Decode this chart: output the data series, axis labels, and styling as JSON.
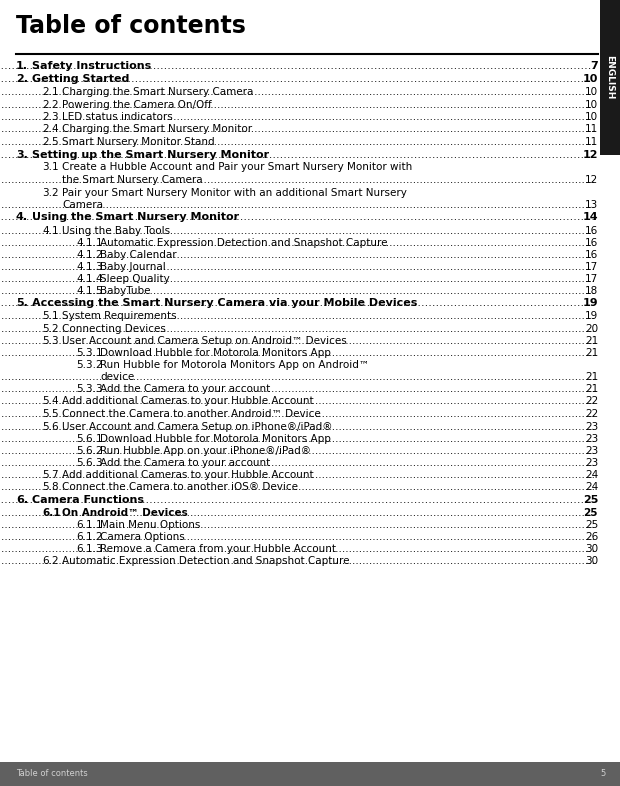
{
  "title": "Table of contents",
  "bg_color": "#ffffff",
  "footer_bg": "#606060",
  "footer_text": "Table of contents",
  "footer_page": "5",
  "sidebar_text": "ENGLISH",
  "sidebar_bg": "#1a1a1a",
  "entries": [
    {
      "level": 1,
      "num": "1.",
      "text": "Safety Instructions",
      "page": "7",
      "bold": true,
      "cont": null
    },
    {
      "level": 1,
      "num": "2.",
      "text": "Getting Started",
      "page": "10",
      "bold": true,
      "cont": null
    },
    {
      "level": 2,
      "num": "2.1",
      "text": "Charging the Smart Nursery Camera",
      "page": "10",
      "bold": false,
      "cont": null
    },
    {
      "level": 2,
      "num": "2.2",
      "text": "Powering the Camera On/Off",
      "page": "10",
      "bold": false,
      "cont": null
    },
    {
      "level": 2,
      "num": "2.3",
      "text": "LED status indicators",
      "page": "10",
      "bold": false,
      "cont": null
    },
    {
      "level": 2,
      "num": "2.4",
      "text": "Charging the Smart Nursery Monitor",
      "page": "11",
      "bold": false,
      "cont": null
    },
    {
      "level": 2,
      "num": "2.5",
      "text": "Smart Nursery Monitor Stand",
      "page": "11",
      "bold": false,
      "cont": null
    },
    {
      "level": 1,
      "num": "3.",
      "text": "Setting up the Smart Nursery Monitor",
      "page": "12",
      "bold": true,
      "cont": null
    },
    {
      "level": 2,
      "num": "3.1",
      "text": "Create a Hubble Account and Pair your Smart Nursery Monitor with",
      "page": "12",
      "bold": false,
      "cont": "the Smart Nursery Camera"
    },
    {
      "level": 2,
      "num": "3.2",
      "text": "Pair your Smart Nursery Monitor with an additional Smart Nursery",
      "page": "13",
      "bold": false,
      "cont": "Camera"
    },
    {
      "level": 1,
      "num": "4.",
      "text": "Using the Smart Nursery Monitor",
      "page": "14",
      "bold": true,
      "cont": null
    },
    {
      "level": 2,
      "num": "4.1",
      "text": "Using the Baby Tools",
      "page": "16",
      "bold": false,
      "cont": null
    },
    {
      "level": 3,
      "num": "4.1.1",
      "text": "Automatic Expression Detection and Snapshot Capture",
      "page": "16",
      "bold": false,
      "cont": null
    },
    {
      "level": 3,
      "num": "4.1.2",
      "text": "Baby Calendar",
      "page": "16",
      "bold": false,
      "cont": null
    },
    {
      "level": 3,
      "num": "4.1.3",
      "text": "Baby Journal",
      "page": "17",
      "bold": false,
      "cont": null
    },
    {
      "level": 3,
      "num": "4.1.4",
      "text": "Sleep Quality",
      "page": "17",
      "bold": false,
      "cont": null
    },
    {
      "level": 3,
      "num": "4.1.5",
      "text": "BabyTube",
      "page": "18",
      "bold": false,
      "cont": null
    },
    {
      "level": 1,
      "num": "5.",
      "text": "Accessing the Smart Nursery Camera via your Mobile Devices",
      "page": "19",
      "bold": true,
      "cont": null
    },
    {
      "level": 2,
      "num": "5.1",
      "text": "System Requirements",
      "page": "19",
      "bold": false,
      "cont": null
    },
    {
      "level": 2,
      "num": "5.2",
      "text": "Connecting Devices",
      "page": "20",
      "bold": false,
      "cont": null
    },
    {
      "level": 2,
      "num": "5.3",
      "text": "User Account and Camera Setup on Android™ Devices",
      "page": "21",
      "bold": false,
      "cont": null
    },
    {
      "level": 3,
      "num": "5.3.1",
      "text": "Download Hubble for Motorola Monitors App",
      "page": "21",
      "bold": false,
      "cont": null
    },
    {
      "level": 3,
      "num": "5.3.2",
      "text": "Run Hubble for Motorola Monitors App on Android™",
      "page": "21",
      "bold": false,
      "cont": "device"
    },
    {
      "level": 3,
      "num": "5.3.3",
      "text": "Add the Camera to your account",
      "page": "21",
      "bold": false,
      "cont": null
    },
    {
      "level": 2,
      "num": "5.4",
      "text": "Add additional Cameras to your Hubble Account",
      "page": "22",
      "bold": false,
      "cont": null
    },
    {
      "level": 2,
      "num": "5.5",
      "text": "Connect the Camera to another Android™ Device",
      "page": "22",
      "bold": false,
      "cont": null
    },
    {
      "level": 2,
      "num": "5.6",
      "text": "User Account and Camera Setup on iPhone®/iPad®",
      "page": "23",
      "bold": false,
      "cont": null
    },
    {
      "level": 3,
      "num": "5.6.1",
      "text": "Download Hubble for Motorola Monitors App",
      "page": "23",
      "bold": false,
      "cont": null
    },
    {
      "level": 3,
      "num": "5.6.2",
      "text": "Run Hubble App on your iPhone®/iPad®",
      "page": "23",
      "bold": false,
      "cont": null
    },
    {
      "level": 3,
      "num": "5.6.3",
      "text": "Add the Camera to your account",
      "page": "23",
      "bold": false,
      "cont": null
    },
    {
      "level": 2,
      "num": "5.7",
      "text": "Add additional Cameras to your Hubble Account",
      "page": "24",
      "bold": false,
      "cont": null
    },
    {
      "level": 2,
      "num": "5.8",
      "text": "Connect the Camera to another iOS® Device",
      "page": "24",
      "bold": false,
      "cont": null
    },
    {
      "level": 1,
      "num": "6.",
      "text": "Camera Functions",
      "page": "25",
      "bold": true,
      "cont": null
    },
    {
      "level": 2,
      "num": "6.1",
      "text": "On Android™ Devices",
      "page": "25",
      "bold": true,
      "cont": null
    },
    {
      "level": 3,
      "num": "6.1.1",
      "text": "Main Menu Options",
      "page": "25",
      "bold": false,
      "cont": null
    },
    {
      "level": 3,
      "num": "6.1.2",
      "text": "Camera Options",
      "page": "26",
      "bold": false,
      "cont": null
    },
    {
      "level": 3,
      "num": "6.1.3",
      "text": "Remove a Camera from your Hubble Account",
      "page": "30",
      "bold": false,
      "cont": null
    },
    {
      "level": 2,
      "num": "6.2",
      "text": "Automatic Expression Detection and Snapshot Capture",
      "page": "30",
      "bold": false,
      "cont": null
    }
  ]
}
